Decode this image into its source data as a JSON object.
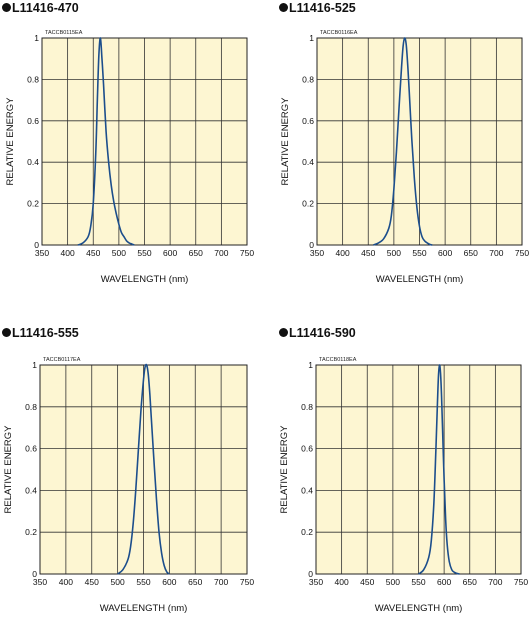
{
  "chart_data": [
    {
      "type": "line",
      "title": "L11416-470",
      "code": "TACCB0115EA",
      "xlabel": "WAVELENGTH (nm)",
      "ylabel": "RELATIVE ENERGY",
      "xlim": [
        350,
        750
      ],
      "ylim": [
        0,
        1
      ],
      "xticks": [
        350,
        400,
        450,
        500,
        550,
        600,
        650,
        700,
        750
      ],
      "yticks": [
        0,
        0.2,
        0.4,
        0.6,
        0.8,
        1
      ],
      "ytick_labels": [
        "0",
        "0.2",
        "0.4",
        "0.6",
        "0.8",
        "1"
      ],
      "grid": true,
      "series": [
        {
          "x": [
            420,
            430,
            440,
            445,
            450,
            455,
            458,
            461,
            464,
            467,
            470,
            475,
            480,
            485,
            490,
            495,
            500,
            505,
            510,
            515,
            520,
            525,
            530
          ],
          "y": [
            0,
            0.01,
            0.04,
            0.09,
            0.2,
            0.45,
            0.7,
            0.92,
            1,
            0.9,
            0.78,
            0.55,
            0.4,
            0.29,
            0.21,
            0.15,
            0.1,
            0.06,
            0.04,
            0.02,
            0.01,
            0.005,
            0
          ]
        }
      ]
    },
    {
      "type": "line",
      "title": "L11416-525",
      "code": "TACCB0116EA",
      "xlabel": "WAVELENGTH (nm)",
      "ylabel": "RELATIVE ENERGY",
      "xlim": [
        350,
        750
      ],
      "ylim": [
        0,
        1
      ],
      "xticks": [
        350,
        400,
        450,
        500,
        550,
        600,
        650,
        700,
        750
      ],
      "yticks": [
        0,
        0.2,
        0.4,
        0.6,
        0.8,
        1
      ],
      "ytick_labels": [
        "0",
        "0.2",
        "0.4",
        "0.6",
        "0.8",
        "1"
      ],
      "grid": true,
      "series": [
        {
          "x": [
            460,
            470,
            480,
            490,
            495,
            500,
            505,
            510,
            515,
            518,
            521,
            524,
            527,
            530,
            535,
            540,
            545,
            550,
            555,
            560,
            565,
            570,
            575
          ],
          "y": [
            0,
            0.01,
            0.03,
            0.08,
            0.14,
            0.27,
            0.45,
            0.66,
            0.86,
            0.96,
            1,
            0.97,
            0.87,
            0.74,
            0.51,
            0.32,
            0.18,
            0.09,
            0.04,
            0.02,
            0.01,
            0.003,
            0
          ]
        }
      ]
    },
    {
      "type": "line",
      "title": "L11416-555",
      "code": "TACCB0117EA",
      "xlabel": "WAVELENGTH (nm)",
      "ylabel": "RELATIVE ENERGY",
      "xlim": [
        350,
        750
      ],
      "ylim": [
        0,
        1
      ],
      "xticks": [
        350,
        400,
        450,
        500,
        550,
        600,
        650,
        700,
        750
      ],
      "yticks": [
        0,
        0.2,
        0.4,
        0.6,
        0.8,
        1
      ],
      "ytick_labels": [
        "0",
        "0.2",
        "0.4",
        "0.6",
        "0.8",
        "1"
      ],
      "grid": true,
      "series": [
        {
          "x": [
            500,
            510,
            520,
            525,
            530,
            535,
            540,
            545,
            550,
            553,
            556,
            559,
            562,
            565,
            570,
            575,
            580,
            585,
            590,
            595,
            600
          ],
          "y": [
            0,
            0.02,
            0.07,
            0.13,
            0.24,
            0.4,
            0.59,
            0.78,
            0.93,
            0.99,
            1,
            0.96,
            0.87,
            0.75,
            0.55,
            0.36,
            0.2,
            0.1,
            0.04,
            0.01,
            0
          ]
        }
      ]
    },
    {
      "type": "line",
      "title": "L11416-590",
      "code": "TACCB0118EA",
      "xlabel": "WAVELENGTH (nm)",
      "ylabel": "RELATIVE ENERGY",
      "xlim": [
        350,
        750
      ],
      "ylim": [
        0,
        1
      ],
      "xticks": [
        350,
        400,
        450,
        500,
        550,
        600,
        650,
        700,
        750
      ],
      "yticks": [
        0,
        0.2,
        0.4,
        0.6,
        0.8,
        1
      ],
      "ytick_labels": [
        "0",
        "0.2",
        "0.4",
        "0.6",
        "0.8",
        "1"
      ],
      "grid": true,
      "series": [
        {
          "x": [
            550,
            560,
            570,
            575,
            580,
            584,
            587,
            589,
            591,
            593,
            595,
            597,
            600,
            603,
            606,
            610,
            615,
            620,
            625,
            630
          ],
          "y": [
            0,
            0.02,
            0.08,
            0.16,
            0.34,
            0.6,
            0.82,
            0.95,
            1,
            0.96,
            0.85,
            0.69,
            0.45,
            0.26,
            0.14,
            0.06,
            0.02,
            0.008,
            0.003,
            0
          ]
        }
      ]
    }
  ]
}
